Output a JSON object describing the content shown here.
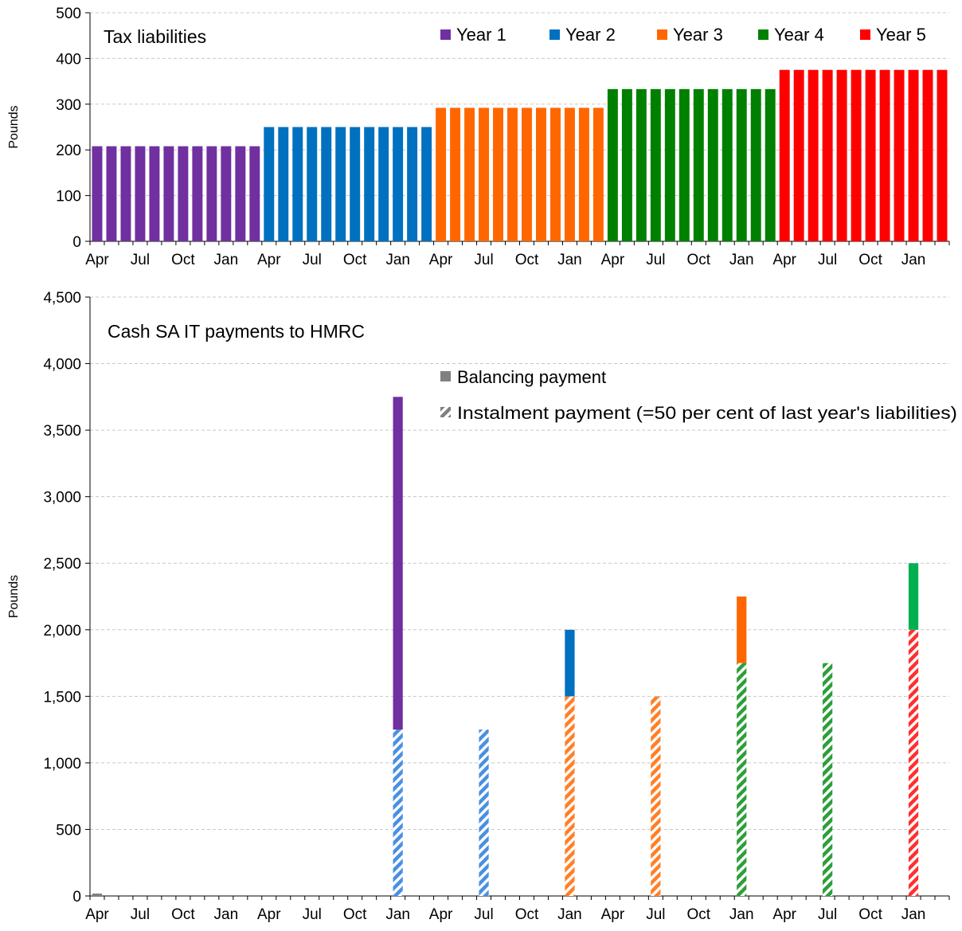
{
  "chart_data": [
    {
      "type": "bar",
      "title": "Tax liabilities",
      "xlabel": "",
      "ylabel": "Pounds",
      "ylim": [
        0,
        500
      ],
      "yticks": [
        "0",
        "100",
        "200",
        "300",
        "400",
        "500"
      ],
      "x_tick_labels": [
        "Apr",
        "Jul",
        "Oct",
        "Jan",
        "Apr",
        "Jul",
        "Oct",
        "Jan",
        "Apr",
        "Jul",
        "Oct",
        "Jan",
        "Apr",
        "Jul",
        "Oct",
        "Jan",
        "Apr",
        "Jul",
        "Oct",
        "Jan"
      ],
      "grid": true,
      "legend_position": "top-right",
      "series": [
        {
          "name": "Year 1",
          "color": "#7030a0",
          "values": [
            208,
            208,
            208,
            208,
            208,
            208,
            208,
            208,
            208,
            208,
            208,
            208
          ]
        },
        {
          "name": "Year 2",
          "color": "#0070c0",
          "values": [
            250,
            250,
            250,
            250,
            250,
            250,
            250,
            250,
            250,
            250,
            250,
            250
          ]
        },
        {
          "name": "Year 3",
          "color": "#ff6600",
          "values": [
            292,
            292,
            292,
            292,
            292,
            292,
            292,
            292,
            292,
            292,
            292,
            292
          ]
        },
        {
          "name": "Year 4",
          "color": "#008000",
          "values": [
            333,
            333,
            333,
            333,
            333,
            333,
            333,
            333,
            333,
            333,
            333,
            333
          ]
        },
        {
          "name": "Year 5",
          "color": "#ff0000",
          "values": [
            375,
            375,
            375,
            375,
            375,
            375,
            375,
            375,
            375,
            375,
            375,
            375
          ]
        }
      ]
    },
    {
      "type": "bar",
      "title": "Cash SA IT payments to HMRC",
      "xlabel": "",
      "ylabel": "Pounds",
      "ylim": [
        0,
        4500
      ],
      "yticks": [
        "0",
        "500",
        "1,000",
        "1,500",
        "2,000",
        "2,500",
        "3,000",
        "3,500",
        "4,000",
        "4,500"
      ],
      "x_tick_labels": [
        "Apr",
        "Jul",
        "Oct",
        "Jan",
        "Apr",
        "Jul",
        "Oct",
        "Jan",
        "Apr",
        "Jul",
        "Oct",
        "Jan",
        "Apr",
        "Jul",
        "Oct",
        "Jan",
        "Apr",
        "Jul",
        "Oct",
        "Jan"
      ],
      "grid": true,
      "legend_position": "top-right",
      "legend": [
        {
          "name": "Balancing payment",
          "style": "solid",
          "color": "#808080"
        },
        {
          "name": "Instalment payment (=50 per cent of last year's liabilities)",
          "style": "hatched",
          "color": "#808080"
        }
      ],
      "payments": [
        {
          "month": "Jan",
          "month_index": 21,
          "instalment": 1250,
          "instalment_color": "#4a90e2",
          "balancing": 2500,
          "balancing_color": "#7030a0"
        },
        {
          "month": "Jul",
          "month_index": 27,
          "instalment": 1250,
          "instalment_color": "#4a90e2",
          "balancing": 0,
          "balancing_color": ""
        },
        {
          "month": "Jan",
          "month_index": 33,
          "instalment": 1500,
          "instalment_color": "#ff7f27",
          "balancing": 500,
          "balancing_color": "#0070c0"
        },
        {
          "month": "Jul",
          "month_index": 39,
          "instalment": 1500,
          "instalment_color": "#ff7f27",
          "balancing": 0,
          "balancing_color": ""
        },
        {
          "month": "Jan",
          "month_index": 45,
          "instalment": 1750,
          "instalment_color": "#2e9e3a",
          "balancing": 500,
          "balancing_color": "#ff6600"
        },
        {
          "month": "Jul",
          "month_index": 51,
          "instalment": 1750,
          "instalment_color": "#2e9e3a",
          "balancing": 0,
          "balancing_color": ""
        },
        {
          "month": "Jan",
          "month_index": 57,
          "instalment": 2000,
          "instalment_color": "#ff3030",
          "balancing": 500,
          "balancing_color": "#00b050"
        }
      ]
    }
  ]
}
